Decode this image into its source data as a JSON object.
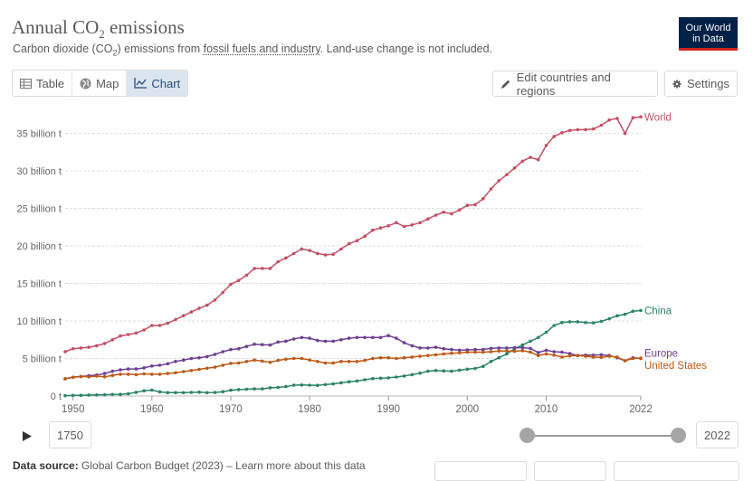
{
  "header": {
    "title_main": "Annual CO",
    "title_sub": "2",
    "title_rest": " emissions",
    "subtitle_pre": "Carbon dioxide (CO",
    "subtitle_sub": "2",
    "subtitle_mid": ") emissions from ",
    "subtitle_link": "fossil fuels and industry",
    "subtitle_post": ". Land-use change is not included.",
    "logo_line1": "Our World",
    "logo_line2": "in Data"
  },
  "tabs": [
    {
      "label": "Table",
      "icon": "table-icon",
      "active": false
    },
    {
      "label": "Map",
      "icon": "globe-icon",
      "active": false
    },
    {
      "label": "Chart",
      "icon": "line-chart-icon",
      "active": true
    }
  ],
  "toolbar": {
    "edit_label": "Edit countries and regions",
    "settings_label": "Settings"
  },
  "timeline": {
    "start_year": "1750",
    "end_year": "2022",
    "selected_start": 1950,
    "selected_end": 2022
  },
  "footer": {
    "source_label": "Data source:",
    "source_text": " Global Carbon Budget (2023) – Learn more about this data"
  },
  "colors": {
    "World": "#c15065",
    "China": "#2c8465",
    "Europe": "#6d3e91",
    "United States": "#be5915",
    "accent": "#002147"
  },
  "chart_data": {
    "type": "line",
    "xlim": [
      1949,
      2022
    ],
    "ylim": [
      0,
      37000000000
    ],
    "yticks": [
      0,
      5000000000,
      10000000000,
      15000000000,
      20000000000,
      25000000000,
      30000000000,
      35000000000
    ],
    "ytick_labels": [
      "0 t",
      "5 billion t",
      "10 billion t",
      "15 billion t",
      "20 billion t",
      "25 billion t",
      "30 billion t",
      "35 billion t"
    ],
    "xticks": [
      1950,
      1960,
      1970,
      1980,
      1990,
      2000,
      2010,
      2022
    ],
    "xtick_labels": [
      "1950",
      "1960",
      "1970",
      "1980",
      "1990",
      "2000",
      "2010",
      "2022"
    ],
    "grid": true,
    "legend": "end-of-line labels",
    "series": [
      {
        "name": "World",
        "x": [
          1949,
          1950,
          1951,
          1952,
          1953,
          1954,
          1955,
          1956,
          1957,
          1958,
          1959,
          1960,
          1961,
          1962,
          1963,
          1964,
          1965,
          1966,
          1967,
          1968,
          1969,
          1970,
          1971,
          1972,
          1973,
          1974,
          1975,
          1976,
          1977,
          1978,
          1979,
          1980,
          1981,
          1982,
          1983,
          1984,
          1985,
          1986,
          1987,
          1988,
          1989,
          1990,
          1991,
          1992,
          1993,
          1994,
          1995,
          1996,
          1997,
          1998,
          1999,
          2000,
          2001,
          2002,
          2003,
          2004,
          2005,
          2006,
          2007,
          2008,
          2009,
          2010,
          2011,
          2012,
          2013,
          2014,
          2015,
          2016,
          2017,
          2018,
          2019,
          2020,
          2021,
          2022
        ],
        "y": [
          5.9,
          6.3,
          6.4,
          6.5,
          6.7,
          7.0,
          7.5,
          8.0,
          8.2,
          8.4,
          8.8,
          9.4,
          9.4,
          9.7,
          10.2,
          10.7,
          11.2,
          11.7,
          12.1,
          12.8,
          13.8,
          14.9,
          15.4,
          16.1,
          17.0,
          17.0,
          17.0,
          17.9,
          18.4,
          19.0,
          19.6,
          19.4,
          19.0,
          18.8,
          18.9,
          19.6,
          20.3,
          20.7,
          21.3,
          22.1,
          22.4,
          22.7,
          23.1,
          22.6,
          22.8,
          23.1,
          23.6,
          24.1,
          24.5,
          24.3,
          24.8,
          25.4,
          25.5,
          26.3,
          27.6,
          28.7,
          29.5,
          30.4,
          31.3,
          31.8,
          31.5,
          33.4,
          34.6,
          35.1,
          35.4,
          35.5,
          35.5,
          35.6,
          36.1,
          36.8,
          37.0,
          35.0,
          37.1,
          37.2
        ]
      },
      {
        "name": "China",
        "x": [
          1949,
          1950,
          1951,
          1952,
          1953,
          1954,
          1955,
          1956,
          1957,
          1958,
          1959,
          1960,
          1961,
          1962,
          1963,
          1964,
          1965,
          1966,
          1967,
          1968,
          1969,
          1970,
          1971,
          1972,
          1973,
          1974,
          1975,
          1976,
          1977,
          1978,
          1979,
          1980,
          1981,
          1982,
          1983,
          1984,
          1985,
          1986,
          1987,
          1988,
          1989,
          1990,
          1991,
          1992,
          1993,
          1994,
          1995,
          1996,
          1997,
          1998,
          1999,
          2000,
          2001,
          2002,
          2003,
          2004,
          2005,
          2006,
          2007,
          2008,
          2009,
          2010,
          2011,
          2012,
          2013,
          2014,
          2015,
          2016,
          2017,
          2018,
          2019,
          2020,
          2021,
          2022
        ],
        "y": [
          0.05,
          0.08,
          0.1,
          0.13,
          0.14,
          0.17,
          0.2,
          0.22,
          0.3,
          0.5,
          0.7,
          0.78,
          0.55,
          0.45,
          0.45,
          0.45,
          0.48,
          0.52,
          0.45,
          0.47,
          0.58,
          0.77,
          0.85,
          0.9,
          0.95,
          0.95,
          1.1,
          1.15,
          1.25,
          1.45,
          1.47,
          1.45,
          1.42,
          1.52,
          1.62,
          1.76,
          1.9,
          2.0,
          2.17,
          2.33,
          2.37,
          2.42,
          2.53,
          2.66,
          2.85,
          3.05,
          3.3,
          3.4,
          3.35,
          3.3,
          3.45,
          3.58,
          3.68,
          3.95,
          4.6,
          5.1,
          5.6,
          6.3,
          6.8,
          7.3,
          7.8,
          8.5,
          9.4,
          9.8,
          9.9,
          9.9,
          9.8,
          9.75,
          9.95,
          10.3,
          10.7,
          10.9,
          11.3,
          11.4
        ]
      },
      {
        "name": "Europe",
        "x": [
          1949,
          1950,
          1951,
          1952,
          1953,
          1954,
          1955,
          1956,
          1957,
          1958,
          1959,
          1960,
          1961,
          1962,
          1963,
          1964,
          1965,
          1966,
          1967,
          1968,
          1969,
          1970,
          1971,
          1972,
          1973,
          1974,
          1975,
          1976,
          1977,
          1978,
          1979,
          1980,
          1981,
          1982,
          1983,
          1984,
          1985,
          1986,
          1987,
          1988,
          1989,
          1990,
          1991,
          1992,
          1993,
          1994,
          1995,
          1996,
          1997,
          1998,
          1999,
          2000,
          2001,
          2002,
          2003,
          2004,
          2005,
          2006,
          2007,
          2008,
          2009,
          2010,
          2011,
          2012,
          2013,
          2014,
          2015,
          2016,
          2017,
          2018,
          2019,
          2020,
          2021,
          2022
        ],
        "y": [
          2.3,
          2.5,
          2.6,
          2.7,
          2.8,
          3.0,
          3.3,
          3.5,
          3.6,
          3.6,
          3.75,
          4.0,
          4.1,
          4.3,
          4.6,
          4.8,
          5.0,
          5.1,
          5.25,
          5.55,
          5.9,
          6.2,
          6.3,
          6.6,
          6.9,
          6.85,
          6.8,
          7.2,
          7.3,
          7.6,
          7.8,
          7.7,
          7.4,
          7.3,
          7.3,
          7.5,
          7.7,
          7.8,
          7.8,
          7.8,
          7.8,
          8.05,
          7.7,
          7.1,
          6.7,
          6.4,
          6.4,
          6.5,
          6.3,
          6.2,
          6.1,
          6.15,
          6.2,
          6.2,
          6.35,
          6.4,
          6.4,
          6.45,
          6.45,
          6.35,
          5.8,
          6.1,
          5.9,
          5.85,
          5.65,
          5.4,
          5.45,
          5.45,
          5.5,
          5.4,
          5.1,
          4.7,
          5.1,
          5.0
        ]
      },
      {
        "name": "United States",
        "x": [
          1949,
          1950,
          1951,
          1952,
          1953,
          1954,
          1955,
          1956,
          1957,
          1958,
          1959,
          1960,
          1961,
          1962,
          1963,
          1964,
          1965,
          1966,
          1967,
          1968,
          1969,
          1970,
          1971,
          1972,
          1973,
          1974,
          1975,
          1976,
          1977,
          1978,
          1979,
          1980,
          1981,
          1982,
          1983,
          1984,
          1985,
          1986,
          1987,
          1988,
          1989,
          1990,
          1991,
          1992,
          1993,
          1994,
          1995,
          1996,
          1997,
          1998,
          1999,
          2000,
          2001,
          2002,
          2003,
          2004,
          2005,
          2006,
          2007,
          2008,
          2009,
          2010,
          2011,
          2012,
          2013,
          2014,
          2015,
          2016,
          2017,
          2018,
          2019,
          2020,
          2021,
          2022
        ],
        "y": [
          2.3,
          2.5,
          2.6,
          2.55,
          2.65,
          2.55,
          2.75,
          2.9,
          2.9,
          2.85,
          2.95,
          2.9,
          2.9,
          3.0,
          3.1,
          3.25,
          3.4,
          3.55,
          3.7,
          3.85,
          4.1,
          4.35,
          4.4,
          4.6,
          4.8,
          4.65,
          4.5,
          4.75,
          4.9,
          5.0,
          5.0,
          4.8,
          4.6,
          4.4,
          4.4,
          4.6,
          4.6,
          4.6,
          4.75,
          5.0,
          5.1,
          5.1,
          5.0,
          5.1,
          5.2,
          5.3,
          5.4,
          5.5,
          5.6,
          5.7,
          5.75,
          5.85,
          5.85,
          5.85,
          5.9,
          6.0,
          6.0,
          5.95,
          6.05,
          5.85,
          5.4,
          5.6,
          5.45,
          5.2,
          5.35,
          5.4,
          5.3,
          5.2,
          5.15,
          5.3,
          5.2,
          4.7,
          5.0,
          5.05
        ]
      }
    ],
    "value_scale": 1000000000
  }
}
